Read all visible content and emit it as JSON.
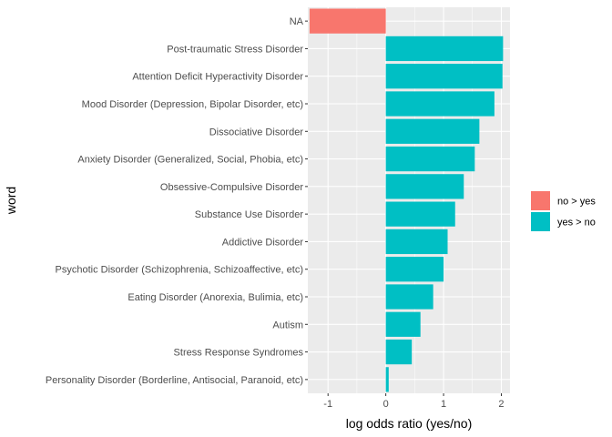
{
  "chart_data": {
    "type": "bar",
    "orientation": "horizontal",
    "xlabel": "log odds ratio (yes/no)",
    "ylabel": "word",
    "xlim": [
      -1.35,
      2.15
    ],
    "x_ticks": [
      -1,
      0,
      1,
      2
    ],
    "x_tick_labels": [
      "-1",
      "0",
      "1",
      "2"
    ],
    "grid": true,
    "legend_position": "right",
    "categories": [
      "NA",
      "Post-traumatic Stress Disorder",
      "Attention Deficit Hyperactivity Disorder",
      "Mood Disorder (Depression, Bipolar Disorder, etc)",
      "Dissociative Disorder",
      "Anxiety Disorder (Generalized, Social, Phobia, etc)",
      "Obsessive-Compulsive Disorder",
      "Substance Use Disorder",
      "Addictive Disorder",
      "Psychotic Disorder (Schizophrenia, Schizoaffective, etc)",
      "Eating Disorder (Anorexia, Bulimia, etc)",
      "Autism",
      "Stress Response Syndromes",
      "Personality Disorder (Borderline, Antisocial, Paranoid, etc)"
    ],
    "values": [
      -1.32,
      2.03,
      2.02,
      1.88,
      1.62,
      1.54,
      1.35,
      1.2,
      1.07,
      1.0,
      0.82,
      0.6,
      0.45,
      0.05
    ],
    "groups": [
      "no > yes",
      "yes > no",
      "yes > no",
      "yes > no",
      "yes > no",
      "yes > no",
      "yes > no",
      "yes > no",
      "yes > no",
      "yes > no",
      "yes > no",
      "yes > no",
      "yes > no",
      "yes > no"
    ],
    "legend": [
      {
        "label": "no > yes",
        "color": "#F8766D"
      },
      {
        "label": "yes > no",
        "color": "#00BFC4"
      }
    ],
    "colors": {
      "panel_background": "#EBEBEB",
      "grid_major": "#FFFFFF",
      "no_gt_yes": "#F8766D",
      "yes_gt_no": "#00BFC4"
    }
  }
}
